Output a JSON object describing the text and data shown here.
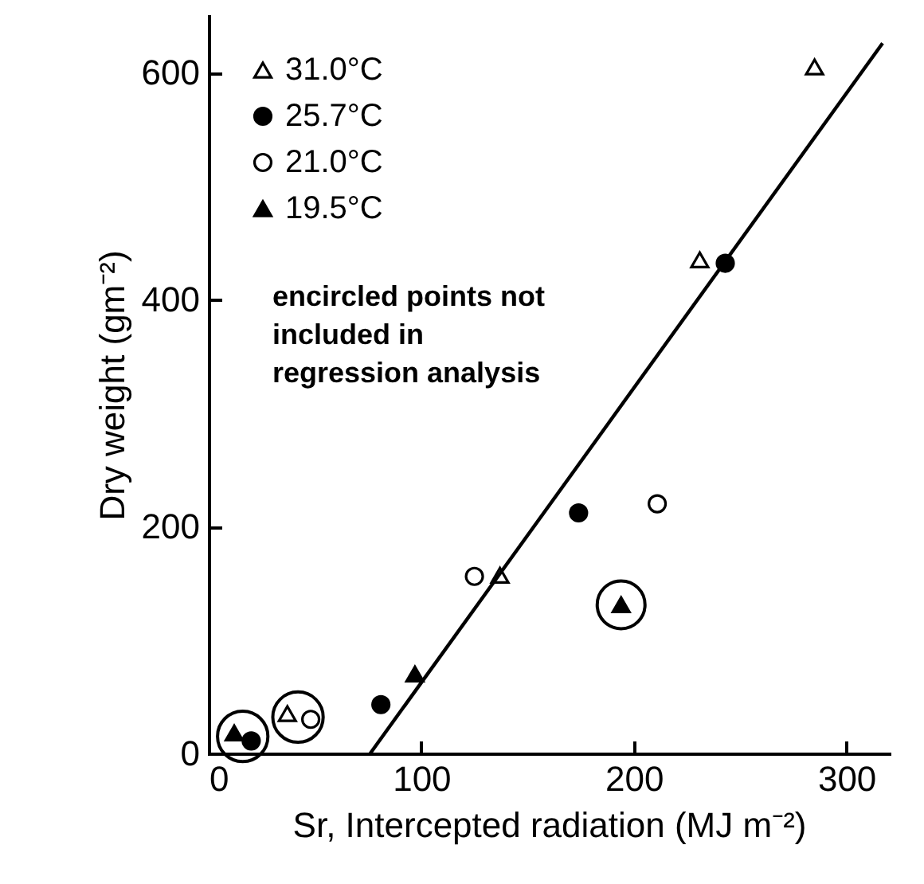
{
  "chart_data": {
    "type": "scatter",
    "xlabel": "Sr, Intercepted radiation (MJ m⁻²)",
    "ylabel": "Dry weight (gm⁻²)",
    "xlim": [
      0,
      320
    ],
    "ylim": [
      0,
      650
    ],
    "xticks": [
      0,
      100,
      200,
      300
    ],
    "yticks": [
      0,
      200,
      400,
      600
    ],
    "legend": "top left",
    "annotations": [
      "encircled points not included in regression analysis"
    ],
    "series": [
      {
        "name": "31.0°C",
        "color": "#ffffff",
        "marker": "triangle",
        "x": [
          285,
          231,
          137,
          37
        ],
        "values": [
          605,
          435,
          157,
          35
        ]
      },
      {
        "name": "25.7°C",
        "color": "#000000",
        "marker": "circle",
        "x": [
          243,
          174,
          81,
          20
        ],
        "values": [
          432,
          212,
          43,
          11
        ]
      },
      {
        "name": "21.0°C",
        "color": "#ffffff",
        "marker": "circle",
        "x": [
          211,
          125,
          48
        ],
        "values": [
          220,
          156,
          30
        ]
      },
      {
        "name": "19.5°C",
        "color": "#000000",
        "marker": "triangle",
        "x": [
          97,
          194,
          12
        ],
        "values": [
          70,
          131,
          18
        ]
      },
      {
        "type": "bubble",
        "color": "#000000",
        "marker": "circle",
        "x": [
          16,
          42,
          194
        ],
        "values": [
          15,
          32,
          131
        ],
        "sizes": [
          1,
          1,
          0.9
        ]
      },
      {
        "type": "line",
        "color": "#000000",
        "marker": "none",
        "x": [
          76,
          317
        ],
        "values": [
          0,
          626
        ]
      }
    ]
  }
}
